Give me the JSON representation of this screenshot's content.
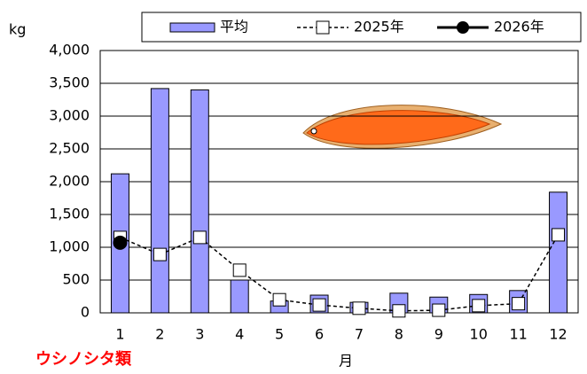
{
  "chart_data": {
    "type": "bar_line",
    "y_label": "kg",
    "x_label": "月",
    "annotation": "ウシノシタ類",
    "categories": [
      "1",
      "2",
      "3",
      "4",
      "5",
      "6",
      "7",
      "8",
      "9",
      "10",
      "11",
      "12"
    ],
    "series": [
      {
        "name": "平均",
        "type": "bar",
        "color": "#9999ff",
        "values": [
          2120,
          3420,
          3400,
          500,
          180,
          270,
          160,
          300,
          240,
          280,
          340,
          1840
        ]
      },
      {
        "name": "2025年",
        "type": "line",
        "dashed": true,
        "marker": "square",
        "color": "#000000",
        "values": [
          1150,
          890,
          1150,
          650,
          200,
          120,
          70,
          30,
          40,
          110,
          140,
          1190
        ]
      },
      {
        "name": "2026年",
        "type": "line",
        "dashed": false,
        "marker": "circle",
        "color": "#000000",
        "values": [
          1070,
          null,
          null,
          null,
          null,
          null,
          null,
          null,
          null,
          null,
          null,
          null
        ]
      }
    ],
    "ylim": [
      0,
      4000
    ],
    "yticks": [
      {
        "value": 0,
        "label": "0"
      },
      {
        "value": 500,
        "label": "500"
      },
      {
        "value": 1000,
        "label": "1,000"
      },
      {
        "value": 1500,
        "label": "1,500"
      },
      {
        "value": 2000,
        "label": "2,000"
      },
      {
        "value": 2500,
        "label": "2,500"
      },
      {
        "value": 3000,
        "label": "3,000"
      },
      {
        "value": 3500,
        "label": "3,500"
      },
      {
        "value": 4000,
        "label": "4,000"
      }
    ],
    "grid": true
  }
}
